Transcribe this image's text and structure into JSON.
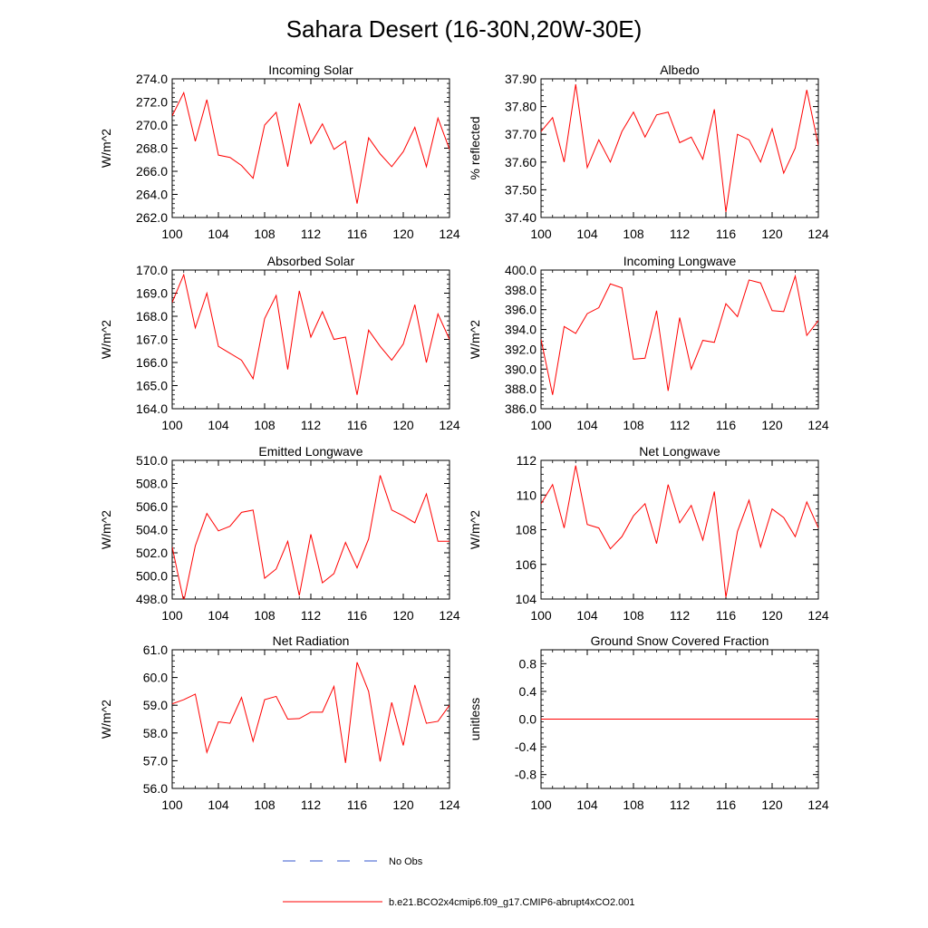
{
  "figure": {
    "title": "Sahara Desert (16-30N,20W-30E)",
    "legend": {
      "no_obs_label": "No Obs",
      "no_obs_color": "#3355cc",
      "model_label": "b.e21.BCO2x4cmip6.f09_g17.CMIP6-abrupt4xCO2.001",
      "model_color": "#ff0000"
    },
    "line_color": "#ff0000"
  },
  "chart_data": [
    {
      "type": "line",
      "title": "Incoming Solar",
      "xlabel": "",
      "ylabel": "W/m^2",
      "xlim": [
        100,
        124
      ],
      "ylim": [
        262,
        274
      ],
      "xticks": [
        100,
        104,
        108,
        112,
        116,
        120,
        124
      ],
      "yticks": [
        262,
        264,
        266,
        268,
        270,
        272,
        274
      ],
      "ytick_labels": [
        "262.0",
        "264.0",
        "266.0",
        "268.0",
        "270.0",
        "272.0",
        "274.0"
      ],
      "xtick_labels": [
        "100",
        "104",
        "108",
        "112",
        "116",
        "120",
        "124"
      ],
      "series": [
        {
          "name": "b.e21.BCO2x4cmip6.f09_g17.CMIP6-abrupt4xCO2.001",
          "x": [
            100,
            101,
            102,
            103,
            104,
            105,
            106,
            107,
            108,
            109,
            110,
            111,
            112,
            113,
            114,
            115,
            116,
            117,
            118,
            119,
            120,
            121,
            122,
            123,
            124
          ],
          "values": [
            270.8,
            272.8,
            268.6,
            272.2,
            267.4,
            267.2,
            266.5,
            265.4,
            270.0,
            271.1,
            266.4,
            271.9,
            268.4,
            270.1,
            267.9,
            268.6,
            263.2,
            268.9,
            267.5,
            266.4,
            267.7,
            269.8,
            266.4,
            270.6,
            267.9
          ]
        }
      ]
    },
    {
      "type": "line",
      "title": "Albedo",
      "xlabel": "",
      "ylabel": "% reflected",
      "xlim": [
        100,
        124
      ],
      "ylim": [
        37.4,
        37.9
      ],
      "xticks": [
        100,
        104,
        108,
        112,
        116,
        120,
        124
      ],
      "yticks": [
        37.4,
        37.5,
        37.6,
        37.7,
        37.8,
        37.9
      ],
      "ytick_labels": [
        "37.40",
        "37.50",
        "37.60",
        "37.70",
        "37.80",
        "37.90"
      ],
      "xtick_labels": [
        "100",
        "104",
        "108",
        "112",
        "116",
        "120",
        "124"
      ],
      "series": [
        {
          "name": "b.e21.BCO2x4cmip6.f09_g17.CMIP6-abrupt4xCO2.001",
          "x": [
            100,
            101,
            102,
            103,
            104,
            105,
            106,
            107,
            108,
            109,
            110,
            111,
            112,
            113,
            114,
            115,
            116,
            117,
            118,
            119,
            120,
            121,
            122,
            123,
            124
          ],
          "values": [
            37.71,
            37.76,
            37.6,
            37.88,
            37.58,
            37.68,
            37.6,
            37.71,
            37.78,
            37.69,
            37.77,
            37.78,
            37.67,
            37.69,
            37.61,
            37.79,
            37.42,
            37.7,
            37.68,
            37.6,
            37.72,
            37.56,
            37.65,
            37.86,
            37.66
          ]
        }
      ]
    },
    {
      "type": "line",
      "title": "Absorbed Solar",
      "xlabel": "",
      "ylabel": "W/m^2",
      "xlim": [
        100,
        124
      ],
      "ylim": [
        164,
        170
      ],
      "xticks": [
        100,
        104,
        108,
        112,
        116,
        120,
        124
      ],
      "yticks": [
        164,
        165,
        166,
        167,
        168,
        169,
        170
      ],
      "ytick_labels": [
        "164.0",
        "165.0",
        "166.0",
        "167.0",
        "168.0",
        "169.0",
        "170.0"
      ],
      "xtick_labels": [
        "100",
        "104",
        "108",
        "112",
        "116",
        "120",
        "124"
      ],
      "series": [
        {
          "name": "b.e21.BCO2x4cmip6.f09_g17.CMIP6-abrupt4xCO2.001",
          "x": [
            100,
            101,
            102,
            103,
            104,
            105,
            106,
            107,
            108,
            109,
            110,
            111,
            112,
            113,
            114,
            115,
            116,
            117,
            118,
            119,
            120,
            121,
            122,
            123,
            124
          ],
          "values": [
            168.6,
            169.8,
            167.5,
            169.0,
            166.7,
            166.4,
            166.1,
            165.3,
            167.9,
            168.9,
            165.7,
            169.1,
            167.1,
            168.2,
            167.0,
            167.1,
            164.6,
            167.4,
            166.7,
            166.1,
            166.8,
            168.5,
            166.0,
            168.1,
            167.0
          ]
        }
      ]
    },
    {
      "type": "line",
      "title": "Incoming Longwave",
      "xlabel": "",
      "ylabel": "W/m^2",
      "xlim": [
        100,
        124
      ],
      "ylim": [
        386,
        400
      ],
      "xticks": [
        100,
        104,
        108,
        112,
        116,
        120,
        124
      ],
      "yticks": [
        386,
        388,
        390,
        392,
        394,
        396,
        398,
        400
      ],
      "ytick_labels": [
        "386.0",
        "388.0",
        "390.0",
        "392.0",
        "394.0",
        "396.0",
        "398.0",
        "400.0"
      ],
      "xtick_labels": [
        "100",
        "104",
        "108",
        "112",
        "116",
        "120",
        "124"
      ],
      "series": [
        {
          "name": "b.e21.BCO2x4cmip6.f09_g17.CMIP6-abrupt4xCO2.001",
          "x": [
            100,
            101,
            102,
            103,
            104,
            105,
            106,
            107,
            108,
            109,
            110,
            111,
            112,
            113,
            114,
            115,
            116,
            117,
            118,
            119,
            120,
            121,
            122,
            123,
            124
          ],
          "values": [
            393.0,
            387.4,
            394.3,
            393.6,
            395.6,
            396.2,
            398.6,
            398.2,
            391.0,
            391.1,
            395.9,
            387.8,
            395.2,
            390.0,
            392.9,
            392.7,
            396.6,
            395.3,
            399.0,
            398.7,
            395.9,
            395.8,
            399.4,
            393.4,
            394.9
          ]
        }
      ]
    },
    {
      "type": "line",
      "title": "Emitted Longwave",
      "xlabel": "",
      "ylabel": "W/m^2",
      "xlim": [
        100,
        124
      ],
      "ylim": [
        498,
        510
      ],
      "xticks": [
        100,
        104,
        108,
        112,
        116,
        120,
        124
      ],
      "yticks": [
        498,
        500,
        502,
        504,
        506,
        508,
        510
      ],
      "ytick_labels": [
        "498.0",
        "500.0",
        "502.0",
        "504.0",
        "506.0",
        "508.0",
        "510.0"
      ],
      "xtick_labels": [
        "100",
        "104",
        "108",
        "112",
        "116",
        "120",
        "124"
      ],
      "series": [
        {
          "name": "b.e21.BCO2x4cmip6.f09_g17.CMIP6-abrupt4xCO2.001",
          "x": [
            100,
            101,
            102,
            103,
            104,
            105,
            106,
            107,
            108,
            109,
            110,
            111,
            112,
            113,
            114,
            115,
            116,
            117,
            118,
            119,
            120,
            121,
            122,
            123,
            124
          ],
          "values": [
            502.5,
            497.8,
            502.6,
            505.4,
            503.9,
            504.3,
            505.5,
            505.7,
            499.8,
            500.6,
            503.0,
            498.3,
            503.6,
            499.4,
            500.2,
            502.9,
            500.7,
            503.2,
            508.7,
            505.7,
            505.2,
            504.6,
            507.1,
            503.0,
            503.0
          ]
        }
      ]
    },
    {
      "type": "line",
      "title": "Net Longwave",
      "xlabel": "",
      "ylabel": "W/m^2",
      "xlim": [
        100,
        124
      ],
      "ylim": [
        104,
        112
      ],
      "xticks": [
        100,
        104,
        108,
        112,
        116,
        120,
        124
      ],
      "yticks": [
        104,
        106,
        108,
        110,
        112
      ],
      "ytick_labels": [
        "104",
        "106",
        "108",
        "110",
        "112"
      ],
      "xtick_labels": [
        "100",
        "104",
        "108",
        "112",
        "116",
        "120",
        "124"
      ],
      "series": [
        {
          "name": "b.e21.BCO2x4cmip6.f09_g17.CMIP6-abrupt4xCO2.001",
          "x": [
            100,
            101,
            102,
            103,
            104,
            105,
            106,
            107,
            108,
            109,
            110,
            111,
            112,
            113,
            114,
            115,
            116,
            117,
            118,
            119,
            120,
            121,
            122,
            123,
            124
          ],
          "values": [
            109.5,
            110.6,
            108.1,
            111.7,
            108.3,
            108.1,
            106.9,
            107.6,
            108.8,
            109.5,
            107.2,
            110.6,
            108.4,
            109.4,
            107.4,
            110.2,
            104.1,
            107.9,
            109.7,
            107.0,
            109.2,
            108.7,
            107.6,
            109.6,
            108.1
          ]
        }
      ]
    },
    {
      "type": "line",
      "title": "Net Radiation",
      "xlabel": "",
      "ylabel": "W/m^2",
      "xlim": [
        100,
        124
      ],
      "ylim": [
        56,
        61
      ],
      "xticks": [
        100,
        104,
        108,
        112,
        116,
        120,
        124
      ],
      "yticks": [
        56,
        57,
        58,
        59,
        60,
        61
      ],
      "ytick_labels": [
        "56.0",
        "57.0",
        "58.0",
        "59.0",
        "60.0",
        "61.0"
      ],
      "xtick_labels": [
        "100",
        "104",
        "108",
        "112",
        "116",
        "120",
        "124"
      ],
      "series": [
        {
          "name": "b.e21.BCO2x4cmip6.f09_g17.CMIP6-abrupt4xCO2.001",
          "x": [
            100,
            101,
            102,
            103,
            104,
            105,
            106,
            107,
            108,
            109,
            110,
            111,
            112,
            113,
            114,
            115,
            116,
            117,
            118,
            119,
            120,
            121,
            122,
            123,
            124
          ],
          "values": [
            59.05,
            59.2,
            59.4,
            57.3,
            58.4,
            58.35,
            59.28,
            57.7,
            59.2,
            59.32,
            58.5,
            58.52,
            58.75,
            58.75,
            59.68,
            56.92,
            60.55,
            59.5,
            56.97,
            59.1,
            57.55,
            59.73,
            58.35,
            58.42,
            59.0
          ]
        }
      ]
    },
    {
      "type": "line",
      "title": "Ground Snow Covered Fraction",
      "xlabel": "",
      "ylabel": "unitless",
      "xlim": [
        100,
        124
      ],
      "ylim": [
        -1,
        1
      ],
      "xticks": [
        100,
        104,
        108,
        112,
        116,
        120,
        124
      ],
      "yticks": [
        -0.8,
        -0.4,
        0,
        0.4,
        0.8
      ],
      "ytick_labels": [
        "-0.8",
        "-0.4",
        "0.0",
        "0.4",
        "0.8"
      ],
      "xtick_labels": [
        "100",
        "104",
        "108",
        "112",
        "116",
        "120",
        "124"
      ],
      "series": [
        {
          "name": "b.e21.BCO2x4cmip6.f09_g17.CMIP6-abrupt4xCO2.001",
          "x": [
            100,
            101,
            102,
            103,
            104,
            105,
            106,
            107,
            108,
            109,
            110,
            111,
            112,
            113,
            114,
            115,
            116,
            117,
            118,
            119,
            120,
            121,
            122,
            123,
            124
          ],
          "values": [
            0,
            0,
            0,
            0,
            0,
            0,
            0,
            0,
            0,
            0,
            0,
            0,
            0,
            0,
            0,
            0,
            0,
            0,
            0,
            0,
            0,
            0,
            0,
            0,
            0
          ]
        }
      ]
    }
  ]
}
